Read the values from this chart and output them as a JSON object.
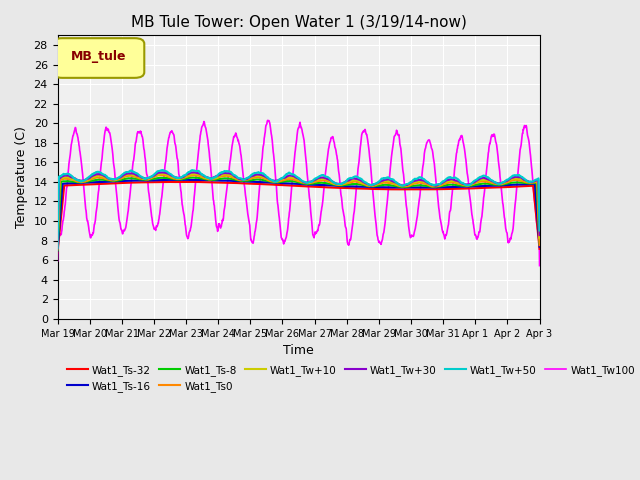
{
  "title": "MB Tule Tower: Open Water 1 (3/19/14-now)",
  "ylabel": "Temperature (C)",
  "xlabel": "Time",
  "background_color": "#e8e8e8",
  "plot_background": "#f0f0f0",
  "series_order": [
    "Wat1_Tw100",
    "Wat1_Ts-32",
    "Wat1_Ts-16",
    "Wat1_Ts-8",
    "Wat1_Ts0",
    "Wat1_Tw+10",
    "Wat1_Tw+30",
    "Wat1_Tw+50"
  ],
  "series": {
    "Wat1_Ts-32": {
      "color": "#ff0000",
      "lw": 1.5,
      "zorder": 5
    },
    "Wat1_Ts-16": {
      "color": "#0000cc",
      "lw": 1.5,
      "zorder": 5
    },
    "Wat1_Ts-8": {
      "color": "#00cc00",
      "lw": 1.5,
      "zorder": 5
    },
    "Wat1_Ts0": {
      "color": "#ff8800",
      "lw": 1.5,
      "zorder": 5
    },
    "Wat1_Tw+10": {
      "color": "#cccc00",
      "lw": 1.5,
      "zorder": 5
    },
    "Wat1_Tw+30": {
      "color": "#8800cc",
      "lw": 1.5,
      "zorder": 5
    },
    "Wat1_Tw+50": {
      "color": "#00cccc",
      "lw": 1.5,
      "zorder": 5
    },
    "Wat1_Tw100": {
      "color": "#ff00ff",
      "lw": 1.2,
      "zorder": 4
    }
  },
  "legend_label": "MB_tule",
  "legend_bg": "#ffff99",
  "legend_border": "#999900",
  "n_days": 15,
  "xtick_positions": [
    0,
    1,
    2,
    3,
    4,
    5,
    6,
    7,
    8,
    9,
    10,
    11,
    12,
    13,
    14,
    15
  ],
  "xtick_labels": [
    "Mar 19",
    "Mar 20",
    "Mar 21",
    "Mar 22",
    "Mar 23",
    "Mar 24",
    "Mar 25",
    "Mar 26",
    "Mar 27",
    "Mar 28",
    "Mar 29",
    "Mar 30",
    "Mar 31",
    "Apr 1",
    "Apr 2",
    "Apr 3"
  ],
  "ytick_vals": [
    0,
    2,
    4,
    6,
    8,
    10,
    12,
    14,
    16,
    18,
    20,
    22,
    24,
    26,
    28
  ]
}
